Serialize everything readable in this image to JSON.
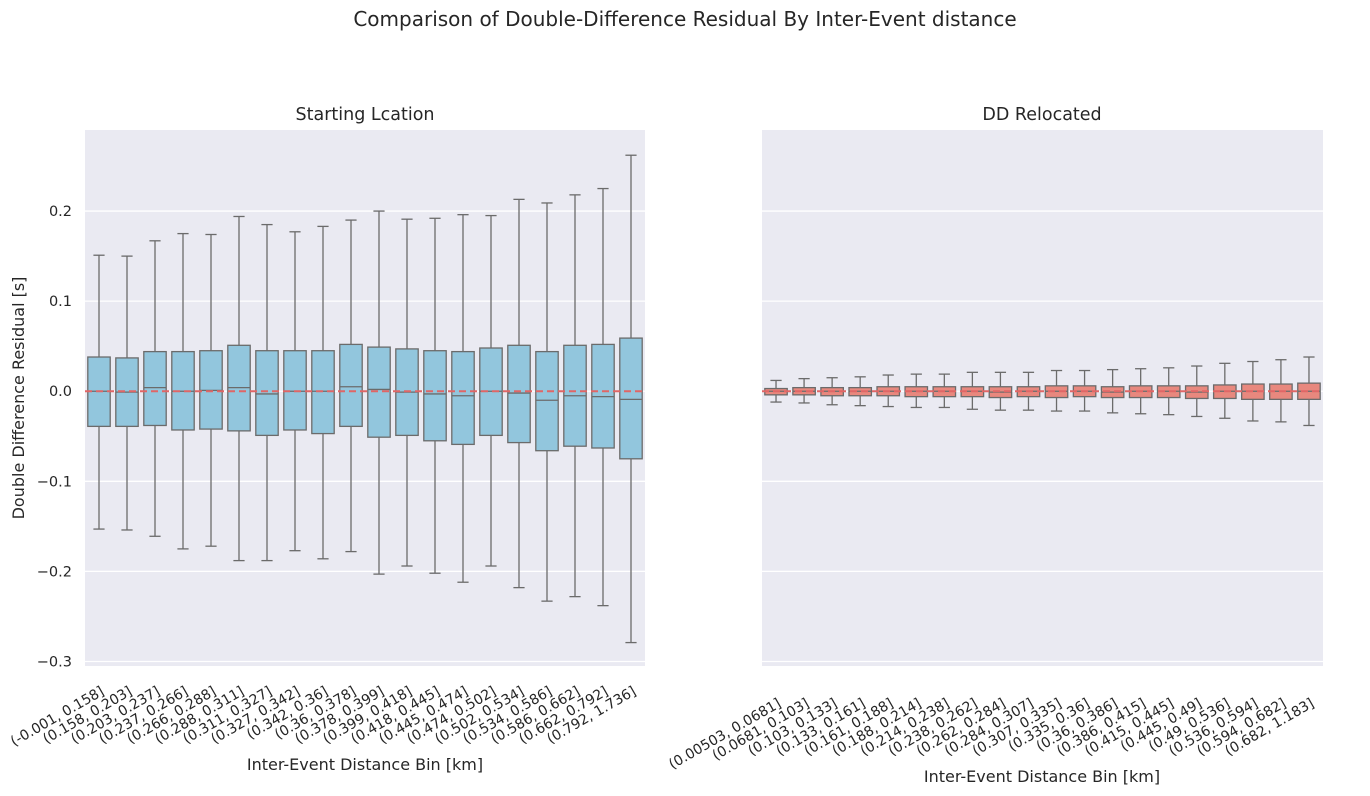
{
  "chart_data": {
    "type": "box",
    "title": "Comparison of Double-Difference Residual By Inter-Event distance",
    "shared_y": true,
    "ylim": [
      -0.305,
      0.29
    ],
    "yticks": [
      -0.3,
      -0.2,
      -0.1,
      0.0,
      0.1,
      0.2
    ],
    "ytick_labels": [
      "−0.3",
      "−0.2",
      "−0.1",
      "0.0",
      "0.1",
      "0.2"
    ],
    "ylabel": "Double Difference Residual [s]",
    "reference_line": {
      "y": 0.0,
      "style": "dashed",
      "color": "#e06666"
    },
    "grid": true,
    "panels": [
      {
        "title": "Starting Lcation",
        "xlabel": "Inter-Event Distance Bin [km]",
        "box_color": "#92c6dd",
        "categories": [
          "(-0.001, 0.158]",
          "(0.158, 0.203]",
          "(0.203, 0.237]",
          "(0.237, 0.266]",
          "(0.266, 0.288]",
          "(0.288, 0.311]",
          "(0.311, 0.327]",
          "(0.327, 0.342]",
          "(0.342, 0.36]",
          "(0.36, 0.378]",
          "(0.378, 0.399]",
          "(0.399, 0.418]",
          "(0.418, 0.445]",
          "(0.445, 0.474]",
          "(0.474, 0.502]",
          "(0.502, 0.534]",
          "(0.534, 0.586]",
          "(0.586, 0.662]",
          "(0.662, 0.792]",
          "(0.792, 1.736]"
        ],
        "boxes": [
          {
            "whislo": -0.153,
            "q1": -0.039,
            "med": 0.0,
            "q3": 0.038,
            "whishi": 0.151
          },
          {
            "whislo": -0.154,
            "q1": -0.039,
            "med": -0.001,
            "q3": 0.037,
            "whishi": 0.15
          },
          {
            "whislo": -0.161,
            "q1": -0.038,
            "med": 0.004,
            "q3": 0.044,
            "whishi": 0.167
          },
          {
            "whislo": -0.175,
            "q1": -0.043,
            "med": 0.0,
            "q3": 0.044,
            "whishi": 0.175
          },
          {
            "whislo": -0.172,
            "q1": -0.042,
            "med": 0.001,
            "q3": 0.045,
            "whishi": 0.174
          },
          {
            "whislo": -0.188,
            "q1": -0.044,
            "med": 0.004,
            "q3": 0.051,
            "whishi": 0.194
          },
          {
            "whislo": -0.188,
            "q1": -0.049,
            "med": -0.003,
            "q3": 0.045,
            "whishi": 0.185
          },
          {
            "whislo": -0.177,
            "q1": -0.043,
            "med": 0.0,
            "q3": 0.045,
            "whishi": 0.177
          },
          {
            "whislo": -0.186,
            "q1": -0.047,
            "med": 0.0,
            "q3": 0.045,
            "whishi": 0.183
          },
          {
            "whislo": -0.178,
            "q1": -0.039,
            "med": 0.005,
            "q3": 0.052,
            "whishi": 0.19
          },
          {
            "whislo": -0.203,
            "q1": -0.051,
            "med": 0.002,
            "q3": 0.049,
            "whishi": 0.2
          },
          {
            "whislo": -0.194,
            "q1": -0.049,
            "med": -0.001,
            "q3": 0.047,
            "whishi": 0.191
          },
          {
            "whislo": -0.202,
            "q1": -0.055,
            "med": -0.003,
            "q3": 0.045,
            "whishi": 0.192
          },
          {
            "whislo": -0.212,
            "q1": -0.059,
            "med": -0.005,
            "q3": 0.044,
            "whishi": 0.196
          },
          {
            "whislo": -0.194,
            "q1": -0.049,
            "med": 0.0,
            "q3": 0.048,
            "whishi": 0.195
          },
          {
            "whislo": -0.218,
            "q1": -0.057,
            "med": -0.002,
            "q3": 0.051,
            "whishi": 0.213
          },
          {
            "whislo": -0.233,
            "q1": -0.066,
            "med": -0.01,
            "q3": 0.044,
            "whishi": 0.209
          },
          {
            "whislo": -0.228,
            "q1": -0.061,
            "med": -0.005,
            "q3": 0.051,
            "whishi": 0.218
          },
          {
            "whislo": -0.238,
            "q1": -0.063,
            "med": -0.006,
            "q3": 0.052,
            "whishi": 0.225
          },
          {
            "whislo": -0.279,
            "q1": -0.075,
            "med": -0.009,
            "q3": 0.059,
            "whishi": 0.262
          }
        ]
      },
      {
        "title": "DD Relocated",
        "xlabel": "Inter-Event Distance Bin [km]",
        "box_color": "#e8887e",
        "categories": [
          "(0.00503, 0.0681]",
          "(0.0681, 0.103]",
          "(0.103, 0.133]",
          "(0.133, 0.161]",
          "(0.161, 0.188]",
          "(0.188, 0.214]",
          "(0.214, 0.238]",
          "(0.238, 0.262]",
          "(0.262, 0.284]",
          "(0.284, 0.307]",
          "(0.307, 0.335]",
          "(0.335, 0.36]",
          "(0.36, 0.386]",
          "(0.386, 0.415]",
          "(0.415, 0.445]",
          "(0.445, 0.49]",
          "(0.49, 0.536]",
          "(0.536, 0.594]",
          "(0.594, 0.682]",
          "(0.682, 1.183]"
        ],
        "boxes": [
          {
            "whislo": -0.012,
            "q1": -0.004,
            "med": 0.0,
            "q3": 0.003,
            "whishi": 0.012
          },
          {
            "whislo": -0.013,
            "q1": -0.004,
            "med": 0.0,
            "q3": 0.004,
            "whishi": 0.014
          },
          {
            "whislo": -0.015,
            "q1": -0.005,
            "med": 0.0,
            "q3": 0.004,
            "whishi": 0.015
          },
          {
            "whislo": -0.016,
            "q1": -0.005,
            "med": 0.0,
            "q3": 0.004,
            "whishi": 0.016
          },
          {
            "whislo": -0.017,
            "q1": -0.005,
            "med": 0.0,
            "q3": 0.005,
            "whishi": 0.018
          },
          {
            "whislo": -0.018,
            "q1": -0.006,
            "med": 0.0,
            "q3": 0.005,
            "whishi": 0.019
          },
          {
            "whislo": -0.018,
            "q1": -0.006,
            "med": 0.0,
            "q3": 0.005,
            "whishi": 0.019
          },
          {
            "whislo": -0.02,
            "q1": -0.006,
            "med": 0.0,
            "q3": 0.005,
            "whishi": 0.021
          },
          {
            "whislo": -0.021,
            "q1": -0.007,
            "med": -0.001,
            "q3": 0.005,
            "whishi": 0.021
          },
          {
            "whislo": -0.021,
            "q1": -0.006,
            "med": 0.0,
            "q3": 0.005,
            "whishi": 0.021
          },
          {
            "whislo": -0.022,
            "q1": -0.007,
            "med": 0.0,
            "q3": 0.006,
            "whishi": 0.023
          },
          {
            "whislo": -0.022,
            "q1": -0.006,
            "med": 0.0,
            "q3": 0.006,
            "whishi": 0.023
          },
          {
            "whislo": -0.024,
            "q1": -0.007,
            "med": -0.001,
            "q3": 0.005,
            "whishi": 0.024
          },
          {
            "whislo": -0.025,
            "q1": -0.007,
            "med": 0.0,
            "q3": 0.006,
            "whishi": 0.025
          },
          {
            "whislo": -0.026,
            "q1": -0.007,
            "med": 0.0,
            "q3": 0.006,
            "whishi": 0.026
          },
          {
            "whislo": -0.028,
            "q1": -0.008,
            "med": -0.001,
            "q3": 0.006,
            "whishi": 0.028
          },
          {
            "whislo": -0.03,
            "q1": -0.008,
            "med": 0.0,
            "q3": 0.007,
            "whishi": 0.031
          },
          {
            "whislo": -0.033,
            "q1": -0.009,
            "med": 0.0,
            "q3": 0.008,
            "whishi": 0.033
          },
          {
            "whislo": -0.034,
            "q1": -0.009,
            "med": 0.0,
            "q3": 0.008,
            "whishi": 0.035
          },
          {
            "whislo": -0.038,
            "q1": -0.009,
            "med": 0.0,
            "q3": 0.009,
            "whishi": 0.038
          }
        ]
      }
    ]
  }
}
